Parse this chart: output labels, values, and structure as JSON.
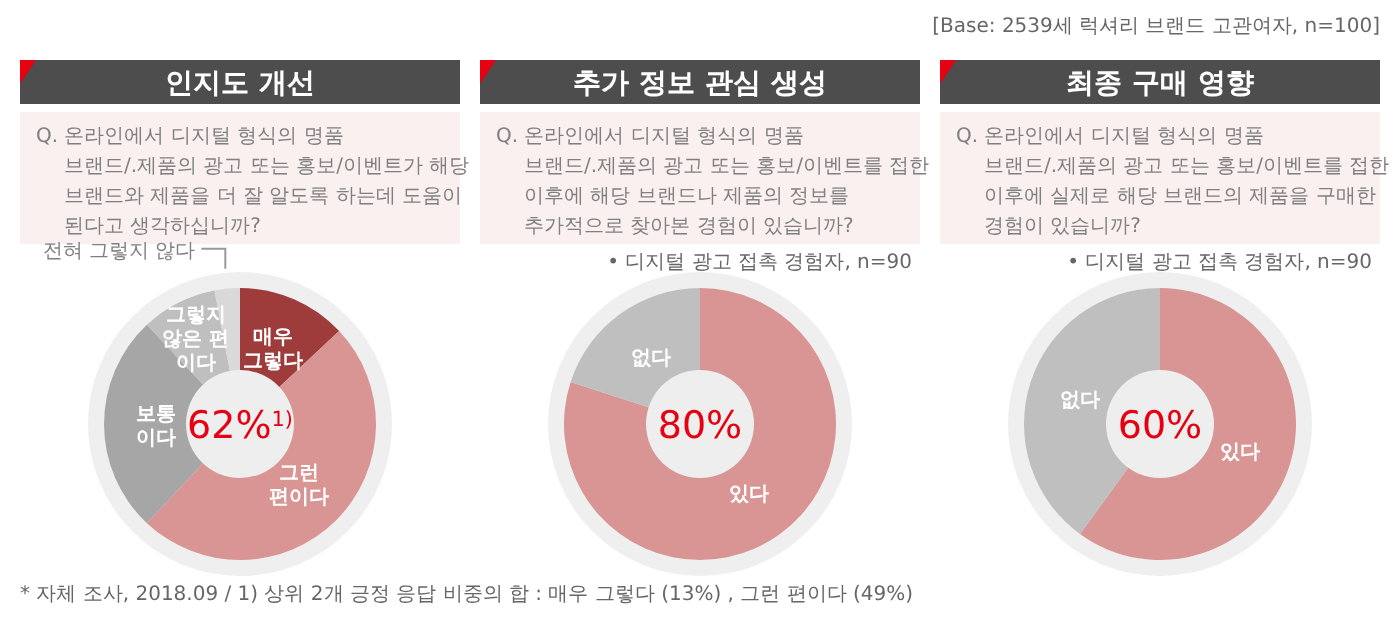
{
  "chart_data": [
    {
      "type": "donut",
      "title": "인지도 개선",
      "subtitle": "Q. 온라인에서 디지털 형식의 명품\n브랜드/.제품의 광고 또는 홍보/이벤트가 해당\n브랜드와 제품을 더 잘 알도록 하는데 도움이\n된다고 생각하십니까?",
      "categories": [
        "매우\n그렇다",
        "그런\n편이다",
        "보통\n이다",
        "그렇지\n않은 편\n이다",
        "전혀 그렇지 않다"
      ],
      "values": [
        13,
        49,
        26,
        9,
        3
      ],
      "colors": [
        "#9e3b3b",
        "#d99494",
        "#a6a6a6",
        "#bfbfbf",
        "#d9d9d9"
      ],
      "annotations": [
        "62%$^{1)}$",
        "* 자체 조사, 2018.09 /  1) 상위 2개 긍정 응답 비중의 합 : 매우 그렇다 (13%) , 그런 편이다 (49%)"
      ]
    },
    {
      "type": "donut",
      "title": "추가 정보 관심 생성",
      "subtitle": "Q. 온라인에서 디지털 형식의 명품\n브랜드/.제품의 광고 또는 홍보/이벤트를 접한\n이후에 해당 브랜드나 제품의 정보를\n추가적으로 찾아본 경험이 있습니까?",
      "categories": [
        "있다",
        "없다"
      ],
      "values": [
        80,
        20
      ],
      "colors": [
        "#d99494",
        "#bfbfbf"
      ],
      "annotations": [
        "80%",
        "• 디지털 광고 접촉 경험자, n=90"
      ]
    },
    {
      "type": "donut",
      "title": "최종 구매 영향",
      "subtitle": "Q. 온라인에서 디지털 형식의 명품\n브랜드/.제품의 광고 또는 홍보/이벤트를 접한\n이후에 실제로 해당 브랜드의 제품을 구매한\n경험이 있습니까?",
      "categories": [
        "있다",
        "없다"
      ],
      "values": [
        60,
        40
      ],
      "colors": [
        "#d99494",
        "#bfbfbf"
      ],
      "annotations": [
        "60%",
        "• 디지털 광고 접촉 경험자, n=90",
        "[Base: 2539세 럭셔리 브랜드 고관여자, n=100]"
      ]
    }
  ]
}
